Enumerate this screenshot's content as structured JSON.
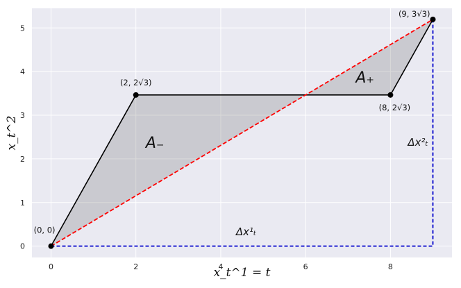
{
  "chart_data": {
    "type": "line",
    "title": "",
    "xlabel": "x_t^1 = t",
    "ylabel": "x_t^2",
    "xlim": [
      -0.45,
      9.45
    ],
    "ylim": [
      -0.26,
      5.45
    ],
    "xticks": [
      0,
      2,
      4,
      6,
      8
    ],
    "yticks": [
      0,
      1,
      2,
      3,
      4,
      5
    ],
    "grid": true,
    "background": "#eaeaf2",
    "path": {
      "x": [
        0,
        2,
        8,
        9
      ],
      "y": [
        0,
        3.4641,
        3.4641,
        5.1962
      ],
      "color": "#000000"
    },
    "diagonal": {
      "x": [
        0,
        9
      ],
      "y": [
        0,
        5.1962
      ],
      "color": "#ff0000",
      "style": "dashed"
    },
    "increments": {
      "x": [
        0,
        9,
        9
      ],
      "y": [
        0,
        0,
        5.1962
      ],
      "color": "#0000cc",
      "style": "dashed"
    },
    "fill_color": "#808080",
    "points": [
      {
        "x": 0,
        "y": 0,
        "label": "(0, 0)",
        "pos": "above-left"
      },
      {
        "x": 2,
        "y": 3.4641,
        "label": "(2, 2√3)",
        "pos": "above"
      },
      {
        "x": 8,
        "y": 3.4641,
        "label": "(8, 2√3)",
        "pos": "below-right"
      },
      {
        "x": 9,
        "y": 5.1962,
        "label": "(9, 3√3)",
        "pos": "above-left"
      }
    ],
    "annotations": [
      {
        "text": "A₋",
        "x": 2.45,
        "y": 2.25,
        "size": "large"
      },
      {
        "text": "A₊",
        "x": 7.4,
        "y": 3.75,
        "size": "large"
      },
      {
        "text": "Δx¹ₜ",
        "x": 4.6,
        "y": 0.25,
        "size": "medium"
      },
      {
        "text": "Δx²ₜ",
        "x": 8.65,
        "y": 2.3,
        "size": "medium"
      }
    ]
  }
}
